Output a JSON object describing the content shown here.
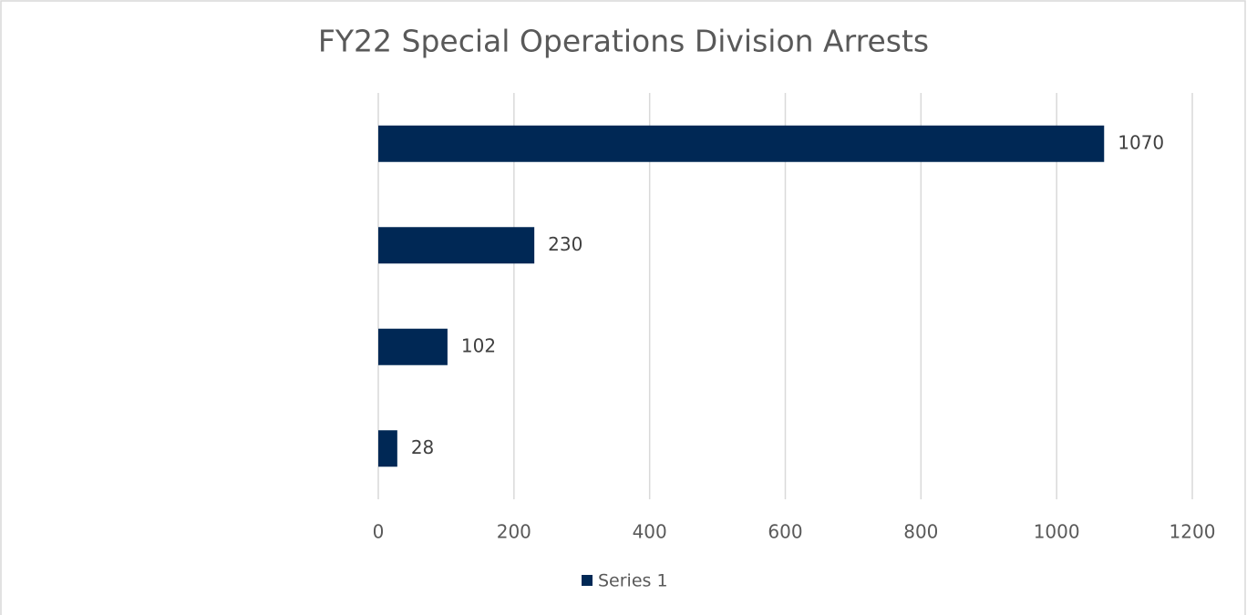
{
  "chart_data": {
    "type": "bar",
    "orientation": "horizontal",
    "title": "FY22 Special Operations Division Arrests",
    "categories": [
      null,
      null,
      null,
      null
    ],
    "series": [
      {
        "name": "Series 1",
        "color": "#002855",
        "values": [
          1070,
          230,
          102,
          28
        ]
      }
    ],
    "xlim": [
      0,
      1200
    ],
    "xticks": [
      0,
      200,
      400,
      600,
      800,
      1000,
      1200
    ],
    "grid": true,
    "legend": "bottom"
  }
}
